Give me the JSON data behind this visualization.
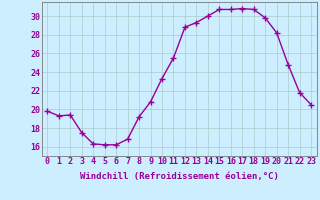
{
  "x": [
    0,
    1,
    2,
    3,
    4,
    5,
    6,
    7,
    8,
    9,
    10,
    11,
    12,
    13,
    14,
    15,
    16,
    17,
    18,
    19,
    20,
    21,
    22,
    23
  ],
  "y": [
    19.8,
    19.3,
    19.4,
    17.5,
    16.3,
    16.2,
    16.2,
    16.8,
    19.2,
    20.8,
    23.3,
    25.5,
    28.8,
    29.3,
    30.0,
    30.7,
    30.7,
    30.8,
    30.7,
    29.8,
    28.2,
    24.8,
    21.8,
    20.5
  ],
  "line_color": "#990099",
  "marker": "+",
  "markersize": 4,
  "markeredgewidth": 1.0,
  "linewidth": 1.0,
  "bg_color": "#cceeff",
  "grid_color": "#aacccc",
  "xlabel": "Windchill (Refroidissement éolien,°C)",
  "xlabel_color": "#990099",
  "tick_color": "#990099",
  "ylim": [
    15.0,
    31.5
  ],
  "xlim": [
    -0.5,
    23.5
  ],
  "yticks": [
    16,
    18,
    20,
    22,
    24,
    26,
    28,
    30
  ],
  "xticks": [
    0,
    1,
    2,
    3,
    4,
    5,
    6,
    7,
    8,
    9,
    10,
    11,
    12,
    13,
    14,
    15,
    16,
    17,
    18,
    19,
    20,
    21,
    22,
    23
  ],
  "xlabel_fontsize": 6.5,
  "tick_fontsize": 6.0,
  "label_fontfamily": "monospace"
}
